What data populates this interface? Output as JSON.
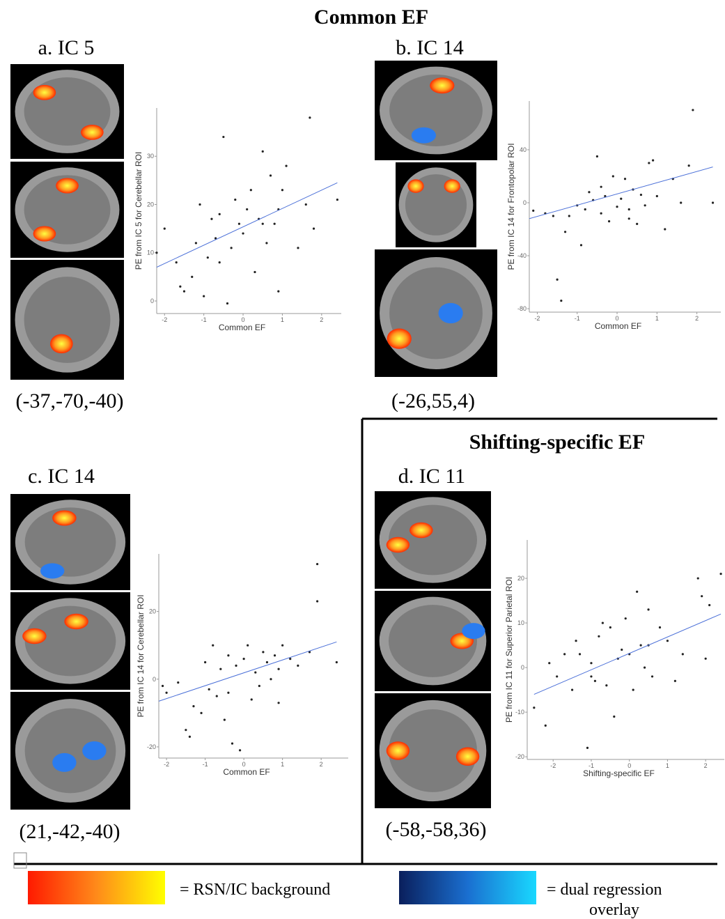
{
  "headings": [
    "Common EF",
    "Shifting-specific EF"
  ],
  "legend": [
    {
      "label": "= RSN/IC background"
    },
    {
      "lines": [
        "= dual regression",
        "overlay"
      ]
    }
  ],
  "chart_data": [
    {
      "type": "scatter",
      "title": "a. IC 5",
      "caption": "(-37,-70,-40)",
      "x_label": "Common EF",
      "y_label": "PE from IC 5 for Cerebellar ROI",
      "point_color": "#222222",
      "xlim": [
        -2.2,
        2.5
      ],
      "ylim": [
        -2.6,
        40
      ],
      "xticks": [
        -2,
        -1,
        0,
        1,
        2
      ],
      "yticks": [
        0,
        10,
        20,
        30
      ],
      "x": [
        -2.2,
        -2.0,
        -1.7,
        -1.6,
        -1.5,
        -1.3,
        -1.2,
        -1.1,
        -1.0,
        -0.9,
        -0.8,
        -0.7,
        -0.6,
        -0.5,
        -0.4,
        -0.3,
        -0.2,
        -0.1,
        0.0,
        0.1,
        0.2,
        0.3,
        0.4,
        0.5,
        0.6,
        0.7,
        0.8,
        0.9,
        1.0,
        1.1,
        1.4,
        1.6,
        1.7,
        1.8,
        2.4,
        -0.6,
        0.5,
        0.9
      ],
      "values": [
        10,
        15,
        8,
        3,
        2,
        5,
        12,
        20,
        1,
        9,
        17,
        13,
        18,
        34,
        -0.5,
        11,
        21,
        16,
        14,
        19,
        23,
        6,
        17,
        31,
        12,
        26,
        16,
        2,
        23,
        28,
        11,
        20,
        38,
        15,
        21,
        8,
        16,
        19
      ],
      "trend": {
        "color": "#4a6fd8",
        "x": [
          -2.2,
          2.4
        ],
        "values": [
          7,
          24.5
        ]
      }
    },
    {
      "type": "scatter",
      "title": "b. IC 14",
      "caption": "(-26,55,4)",
      "x_label": "Common EF",
      "y_label": "PE from IC 14 for Frontopolar ROI",
      "point_color": "#222222",
      "xlim": [
        -2.2,
        2.6
      ],
      "ylim": [
        -82.6,
        76.8
      ],
      "xticks": [
        -2,
        -1,
        0,
        1,
        2
      ],
      "yticks": [
        -80,
        -40,
        0,
        40
      ],
      "x": [
        -2.1,
        -1.8,
        -1.6,
        -1.5,
        -1.4,
        -1.3,
        -1.2,
        -1.0,
        -0.9,
        -0.8,
        -0.7,
        -0.6,
        -0.5,
        -0.4,
        -0.3,
        -0.2,
        -0.1,
        0,
        0.1,
        0.2,
        0.3,
        0.4,
        0.5,
        0.6,
        0.7,
        0.8,
        0.9,
        1.0,
        1.2,
        1.4,
        1.6,
        1.8,
        1.9,
        2.4,
        -0.4,
        0.3
      ],
      "values": [
        -6,
        -8,
        -10,
        -58,
        -74,
        -22,
        -10,
        -2,
        -32,
        -5,
        8,
        2,
        35,
        -8,
        5,
        -14,
        20,
        -3,
        3,
        18,
        -12,
        10,
        -16,
        6,
        -2,
        30,
        32,
        5,
        -20,
        18,
        0,
        28,
        70,
        0,
        12,
        -5
      ],
      "trend": {
        "color": "#4a6fd8",
        "x": [
          -2.2,
          2.4
        ],
        "values": [
          -12,
          27
        ]
      }
    },
    {
      "type": "scatter",
      "title": "c. IC 14",
      "caption": "(21,-42,-40)",
      "x_label": "Common EF",
      "y_label": "PE from IC 14 for Cerebellar ROI",
      "point_color": "#222222",
      "xlim": [
        -2.2,
        2.7
      ],
      "ylim": [
        -23.3,
        37
      ],
      "xticks": [
        -2,
        -1,
        0,
        1,
        2
      ],
      "yticks": [
        -20,
        0,
        20
      ],
      "x": [
        -2.1,
        -2.0,
        -1.7,
        -1.5,
        -1.4,
        -1.3,
        -1.1,
        -1.0,
        -0.9,
        -0.8,
        -0.7,
        -0.6,
        -0.5,
        -0.4,
        -0.3,
        -0.2,
        -0.1,
        0,
        0.1,
        0.2,
        0.3,
        0.4,
        0.5,
        0.6,
        0.7,
        0.8,
        0.9,
        1.0,
        1.2,
        1.4,
        1.7,
        1.9,
        1.9,
        2.4,
        -0.4,
        0.9
      ],
      "values": [
        -2,
        -4,
        -1,
        -15,
        -17,
        -8,
        -10,
        5,
        -3,
        10,
        -5,
        3,
        -12,
        7,
        -19,
        4,
        -21,
        6,
        10,
        -6,
        2,
        -2,
        8,
        5,
        0,
        7,
        -7,
        10,
        6,
        4,
        8,
        34,
        23,
        5,
        -4,
        3
      ],
      "trend": {
        "color": "#4a6fd8",
        "x": [
          -2.2,
          2.4
        ],
        "values": [
          -6.5,
          11
        ]
      }
    },
    {
      "type": "scatter",
      "title": "d. IC 11",
      "caption": "(-58,-58,36)",
      "x_label": "Shifting-specific EF",
      "y_label": "PE from IC 11 for Superior Parietal ROI",
      "point_color": "#222222",
      "xlim": [
        -2.68,
        2.49
      ],
      "ylim": [
        -20.6,
        28.6
      ],
      "xticks": [
        -2,
        -1,
        0,
        1,
        2
      ],
      "yticks": [
        -20,
        -10,
        0,
        10,
        20
      ],
      "x": [
        -2.5,
        -2.2,
        -2.1,
        -1.9,
        -1.7,
        -1.5,
        -1.4,
        -1.3,
        -1.1,
        -1.0,
        -0.9,
        -0.8,
        -0.7,
        -0.6,
        -0.5,
        -0.4,
        -0.3,
        -0.2,
        -0.1,
        0,
        0.1,
        0.2,
        0.3,
        0.4,
        0.5,
        0.6,
        0.8,
        1.0,
        1.2,
        1.4,
        1.8,
        1.9,
        2.0,
        2.1,
        2.4,
        -1.0,
        0.5
      ],
      "values": [
        -9,
        -13,
        1,
        -2,
        3,
        -5,
        6,
        3,
        -18,
        1,
        -3,
        7,
        10,
        -4,
        9,
        -11,
        2,
        4,
        11,
        3,
        -5,
        17,
        5,
        0,
        13,
        -2,
        9,
        6,
        -3,
        3,
        20,
        16,
        2,
        14,
        21,
        -2,
        5
      ],
      "trend": {
        "color": "#4a6fd8",
        "x": [
          -2.5,
          2.4
        ],
        "values": [
          -6,
          12
        ]
      }
    }
  ]
}
